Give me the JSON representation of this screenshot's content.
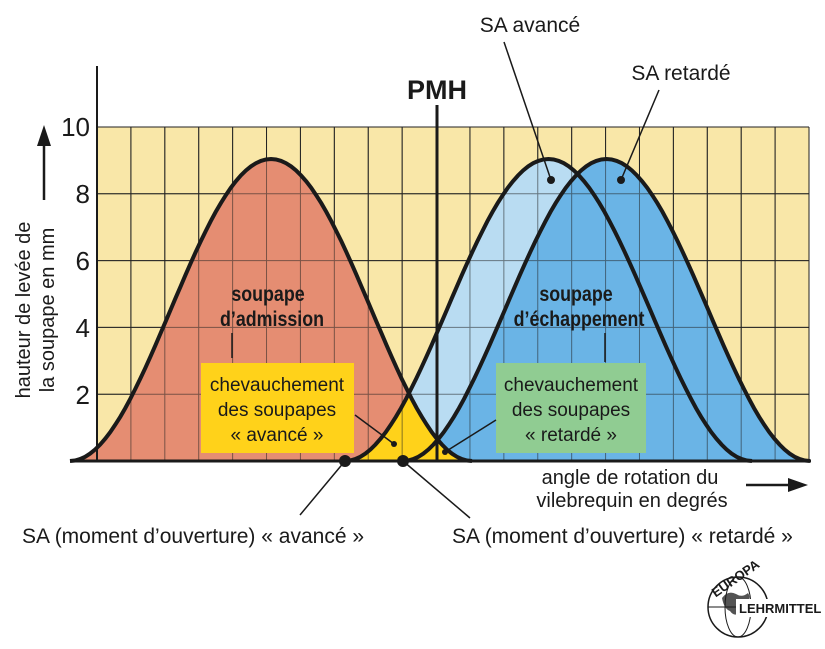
{
  "title_top": "PMH",
  "y_axis": {
    "label_line1": "hauteur de levée de",
    "label_line2": "la soupape en mm",
    "ticks": [
      "10",
      "8",
      "6",
      "4",
      "2"
    ]
  },
  "x_axis": {
    "label_line1": "angle de rotation du",
    "label_line2": "vilebrequin en degrés"
  },
  "labels": {
    "sa_avance": "SA avancé",
    "sa_retarde": "SA retardé",
    "intake_line1": "soupape",
    "intake_line2": "d’admission",
    "exhaust_line1": "soupape",
    "exhaust_line2": "d’échappement",
    "overlap_adv_line1": "chevauchement",
    "overlap_adv_line2": "des soupapes",
    "overlap_adv_line3": "« avancé »",
    "overlap_ret_line1": "chevauchement",
    "overlap_ret_line2": "des soupapes",
    "overlap_ret_line3": "« retardé »",
    "open_adv": "SA (moment d’ouverture) « avancé »",
    "open_ret": "SA (moment d’ouverture) « retardé »"
  },
  "logo": {
    "text_top": "EUROPA",
    "text_side": "LEHRMITTEL"
  },
  "colors": {
    "background_grid": "#f9e7a8",
    "grid_lines": "#222222",
    "intake_fill": "#e58d72",
    "exhaust_advanced_fill": "#b9dcf2",
    "exhaust_retarded_fill": "#6ab4e6",
    "overlap_advanced_box": "#ffd21a",
    "overlap_retarded_box": "#90cc92",
    "overlap_retarded_area": "#8cc98d",
    "curve": "#1a1a1a"
  },
  "chart_data": {
    "type": "area",
    "ylim": [
      0,
      10
    ],
    "series": [
      {
        "name": "soupape d’admission",
        "peak": 9
      },
      {
        "name": "SA avancé",
        "peak": 9
      },
      {
        "name": "SA retardé",
        "peak": 9
      }
    ]
  }
}
